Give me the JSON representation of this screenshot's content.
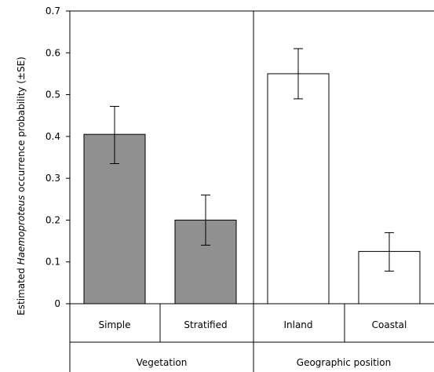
{
  "chart_data": {
    "type": "bar",
    "ylabel_parts": [
      "Estimated ",
      "Haemoproteus",
      " occurrence probability (±SE)"
    ],
    "ylim": [
      0,
      0.7
    ],
    "yticks": [
      "0",
      "0.1",
      "0.2",
      "0.3",
      "0.4",
      "0.5",
      "0.6",
      "0.7"
    ],
    "grid": false,
    "groups": [
      {
        "label": "Vegetation",
        "color": "#909090",
        "bars": [
          {
            "category": "Simple",
            "value": 0.405,
            "se_low": 0.335,
            "se_high": 0.472
          },
          {
            "category": "Stratified",
            "value": 0.2,
            "se_low": 0.14,
            "se_high": 0.26
          }
        ]
      },
      {
        "label": "Geographic position",
        "color": "#ffffff",
        "bars": [
          {
            "category": "Inland",
            "value": 0.55,
            "se_low": 0.49,
            "se_high": 0.61
          },
          {
            "category": "Coastal",
            "value": 0.125,
            "se_low": 0.078,
            "se_high": 0.17
          }
        ]
      }
    ]
  }
}
